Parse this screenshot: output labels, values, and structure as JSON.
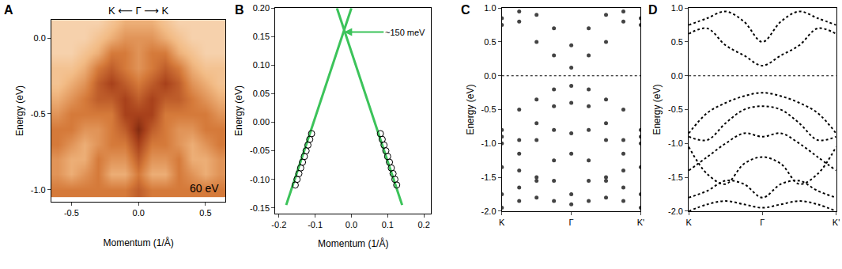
{
  "chart_data": [
    {
      "type": "heatmap",
      "panel_label": "A",
      "title": "K ⟵ Γ ⟶ K",
      "x_label": "Momentum (1/Å)",
      "y_label": "Energy (eV)",
      "x": [
        -0.6,
        -0.5,
        -0.4,
        -0.3,
        -0.2,
        -0.1,
        0.0,
        0.1,
        0.2,
        0.3,
        0.4,
        0.5,
        0.6
      ],
      "y": [
        0.1,
        0.0,
        -0.1,
        -0.2,
        -0.3,
        -0.4,
        -0.5,
        -0.6,
        -0.7,
        -0.8,
        -0.9,
        -1.0
      ],
      "z": [
        [
          2,
          2,
          2,
          2,
          3,
          4,
          4,
          4,
          3,
          2,
          2,
          2,
          2
        ],
        [
          2,
          2,
          2,
          3,
          4,
          5,
          5,
          5,
          4,
          3,
          2,
          2,
          2
        ],
        [
          2,
          2,
          3,
          4,
          6,
          6,
          5,
          6,
          6,
          4,
          3,
          2,
          2
        ],
        [
          3,
          3,
          4,
          6,
          7,
          6,
          5,
          6,
          7,
          6,
          4,
          3,
          3
        ],
        [
          3,
          4,
          5,
          7,
          8,
          7,
          6,
          7,
          8,
          7,
          5,
          4,
          3
        ],
        [
          4,
          5,
          6,
          7,
          7,
          8,
          7,
          8,
          7,
          7,
          6,
          5,
          4
        ],
        [
          5,
          6,
          6,
          6,
          6,
          8,
          8,
          8,
          6,
          6,
          6,
          6,
          5
        ],
        [
          6,
          6,
          5,
          5,
          6,
          7,
          9,
          7,
          6,
          5,
          5,
          6,
          6
        ],
        [
          6,
          5,
          4,
          5,
          6,
          6,
          8,
          6,
          6,
          5,
          4,
          5,
          6
        ],
        [
          5,
          4,
          4,
          6,
          5,
          5,
          7,
          5,
          5,
          6,
          4,
          4,
          5
        ],
        [
          5,
          4,
          5,
          6,
          4,
          4,
          6,
          4,
          4,
          6,
          5,
          4,
          5
        ],
        [
          6,
          6,
          6,
          6,
          6,
          6,
          7,
          6,
          6,
          6,
          6,
          6,
          6
        ]
      ],
      "zlim": [
        0,
        10
      ],
      "xlim": [
        -0.65,
        0.65
      ],
      "xticks": [
        {
          "value": -0.5,
          "label": "-0.5"
        },
        {
          "value": 0,
          "label": "0.0"
        },
        {
          "value": 0.5,
          "label": "0.5"
        }
      ],
      "ylim": [
        -1.08,
        0.12
      ],
      "yticks": [
        {
          "value": -1.0,
          "label": "-1.0"
        },
        {
          "value": -0.5,
          "label": "-0.5"
        },
        {
          "value": 0,
          "label": "0.0"
        }
      ],
      "annotations": [
        {
          "text": "60 eV"
        }
      ]
    },
    {
      "type": "line",
      "panel_label": "B",
      "x_label": "Momentum (1/Å)",
      "y_label": "Energy (eV)",
      "series": [
        {
          "type": "line",
          "color": "#3cc35a",
          "line_style": "solid",
          "x": [
            -0.18,
            0.0
          ],
          "values": [
            -0.145,
            0.2
          ]
        },
        {
          "type": "line",
          "color": "#3cc35a",
          "line_style": "solid",
          "x": [
            -0.04,
            0.14
          ],
          "values": [
            0.2,
            -0.145
          ]
        },
        {
          "type": "scatter",
          "color": "#000000",
          "marker": "circle-open",
          "x": [
            -0.155,
            -0.15,
            -0.145,
            -0.14,
            -0.135,
            -0.13,
            -0.125,
            -0.12,
            -0.115,
            -0.11
          ],
          "values": [
            -0.11,
            -0.1,
            -0.09,
            -0.08,
            -0.07,
            -0.06,
            -0.05,
            -0.04,
            -0.03,
            -0.02
          ]
        },
        {
          "type": "scatter",
          "color": "#000000",
          "marker": "circle-open",
          "x": [
            0.08,
            0.085,
            0.09,
            0.095,
            0.1,
            0.105,
            0.11,
            0.115,
            0.12,
            0.125
          ],
          "values": [
            -0.02,
            -0.03,
            -0.04,
            -0.05,
            -0.06,
            -0.07,
            -0.08,
            -0.09,
            -0.1,
            -0.11
          ]
        }
      ],
      "xlim": [
        -0.21,
        0.22
      ],
      "xticks": [
        -0.2,
        -0.1,
        {
          "value": 0,
          "label": "0.0"
        },
        0.1,
        0.2
      ],
      "ylim": [
        -0.16,
        0.2
      ],
      "yticks": [
        {
          "value": -0.15,
          "label": "-0.15"
        },
        {
          "value": -0.1,
          "label": "-0.10"
        },
        {
          "value": -0.05,
          "label": "-0.05"
        },
        {
          "value": 0,
          "label": "0.00"
        },
        {
          "value": 0.05,
          "label": "0.05"
        },
        {
          "value": 0.1,
          "label": "0.10"
        },
        {
          "value": 0.15,
          "label": "0.15"
        },
        {
          "value": 0.2,
          "label": "0.20"
        }
      ],
      "annotations": [
        {
          "text": "~150 meV",
          "x": -0.02,
          "y": 0.158
        }
      ]
    },
    {
      "type": "scatter",
      "panel_label": "C",
      "y_label": "Energy (eV)",
      "hline": 0,
      "x": [
        -1,
        -0.75,
        -0.5,
        -0.25,
        0,
        0.25,
        0.5,
        0.75,
        1
      ],
      "series": [
        {
          "color": "#222222",
          "values": [
            0.75,
            0.8,
            0.5,
            0.3,
            0.12,
            0.3,
            0.5,
            0.8,
            0.75
          ]
        },
        {
          "color": "#222222",
          "values": [
            0.85,
            0.95,
            0.9,
            0.7,
            0.45,
            0.7,
            0.9,
            0.95,
            0.85
          ]
        },
        {
          "color": "#222222",
          "values": [
            -0.8,
            -0.5,
            -0.35,
            -0.2,
            -0.15,
            -0.2,
            -0.35,
            -0.5,
            -0.8
          ]
        },
        {
          "color": "#222222",
          "values": [
            -0.9,
            -0.95,
            -0.7,
            -0.45,
            -0.4,
            -0.45,
            -0.7,
            -0.95,
            -0.9
          ]
        },
        {
          "color": "#222222",
          "values": [
            -1.35,
            -1.15,
            -0.95,
            -0.8,
            -0.85,
            -0.8,
            -0.95,
            -1.15,
            -1.35
          ]
        },
        {
          "color": "#222222",
          "values": [
            -1.0,
            -1.4,
            -1.55,
            -1.25,
            -1.15,
            -1.25,
            -1.55,
            -1.4,
            -1.0
          ]
        },
        {
          "color": "#222222",
          "values": [
            -1.75,
            -1.65,
            -1.5,
            -1.55,
            -1.75,
            -1.55,
            -1.5,
            -1.65,
            -1.75
          ]
        },
        {
          "color": "#222222",
          "values": [
            -1.95,
            -1.85,
            -1.8,
            -1.85,
            -1.9,
            -1.85,
            -1.8,
            -1.85,
            -1.95
          ]
        }
      ],
      "xlim": [
        -1,
        1
      ],
      "xticks": [
        {
          "value": -1,
          "label": "K"
        },
        {
          "value": 0,
          "label": "Γ"
        },
        {
          "value": 1,
          "label": "K'"
        }
      ],
      "ylim": [
        -2,
        1
      ],
      "yticks": [
        {
          "value": -2,
          "label": "-2.0"
        },
        {
          "value": -1.5,
          "label": "-1.5"
        },
        {
          "value": -1,
          "label": "-1.0"
        },
        {
          "value": -0.5,
          "label": "-0.5"
        },
        {
          "value": 0,
          "label": "0.0"
        },
        {
          "value": 0.5,
          "label": "0.5"
        },
        {
          "value": 1,
          "label": "1.0"
        }
      ]
    },
    {
      "type": "line",
      "panel_label": "D",
      "y_label": "Energy (eV)",
      "hline": 0,
      "line_style": "dot",
      "x": [
        -1,
        -0.75,
        -0.5,
        -0.25,
        0,
        0.25,
        0.5,
        0.75,
        1
      ],
      "series": [
        {
          "color": "#000000",
          "values": [
            0.62,
            0.7,
            0.45,
            0.3,
            0.15,
            0.3,
            0.45,
            0.7,
            0.62
          ]
        },
        {
          "color": "#000000",
          "values": [
            0.75,
            0.85,
            0.95,
            0.8,
            0.5,
            0.8,
            0.95,
            0.85,
            0.75
          ]
        },
        {
          "color": "#000000",
          "values": [
            -0.85,
            -0.55,
            -0.4,
            -0.3,
            -0.25,
            -0.3,
            -0.4,
            -0.55,
            -0.85
          ]
        },
        {
          "color": "#000000",
          "values": [
            -0.9,
            -0.95,
            -0.7,
            -0.5,
            -0.45,
            -0.5,
            -0.7,
            -0.95,
            -0.9
          ]
        },
        {
          "color": "#000000",
          "values": [
            -1.4,
            -1.2,
            -1.0,
            -0.85,
            -0.9,
            -0.85,
            -1.0,
            -1.2,
            -1.4
          ]
        },
        {
          "color": "#000000",
          "values": [
            -1.05,
            -1.45,
            -1.6,
            -1.3,
            -1.2,
            -1.3,
            -1.6,
            -1.45,
            -1.05
          ]
        },
        {
          "color": "#000000",
          "values": [
            -1.8,
            -1.7,
            -1.55,
            -1.6,
            -1.8,
            -1.6,
            -1.55,
            -1.7,
            -1.8
          ]
        },
        {
          "color": "#000000",
          "values": [
            -2.0,
            -1.9,
            -1.85,
            -1.9,
            -1.95,
            -1.9,
            -1.85,
            -1.9,
            -2.0
          ]
        }
      ],
      "xlim": [
        -1,
        1
      ],
      "xticks": [
        {
          "value": -1,
          "label": "K"
        },
        {
          "value": 0,
          "label": "Γ"
        },
        {
          "value": 1,
          "label": "K'"
        }
      ],
      "ylim": [
        -2,
        1
      ],
      "yticks": [
        {
          "value": -2,
          "label": "-2.0"
        },
        {
          "value": -1.5,
          "label": "-1.5"
        },
        {
          "value": -1,
          "label": "-1.0"
        },
        {
          "value": -0.5,
          "label": "-0.5"
        },
        {
          "value": 0,
          "label": "0.0"
        },
        {
          "value": 0.5,
          "label": "0.5"
        },
        {
          "value": 1,
          "label": "1.0"
        }
      ]
    }
  ]
}
